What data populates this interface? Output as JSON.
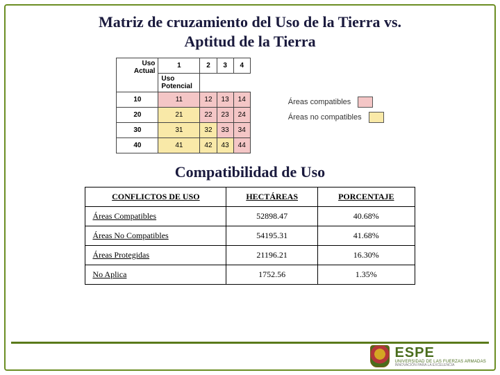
{
  "title_line1": "Matriz de cruzamiento del Uso de la Tierra vs.",
  "title_line2": "Aptitud de la Tierra",
  "matrix": {
    "corner_top": "Uso",
    "corner_mid": "Actual",
    "corner_bot": "Uso",
    "corner_bot2": "Potencial",
    "col_headers": [
      "1",
      "2",
      "3",
      "4"
    ],
    "rows": [
      {
        "hdr": "10",
        "cells": [
          "11",
          "12",
          "13",
          "14"
        ],
        "colors": [
          "#f4c6c6",
          "#f4c6c6",
          "#f4c6c6",
          "#f4c6c6"
        ]
      },
      {
        "hdr": "20",
        "cells": [
          "21",
          "22",
          "23",
          "24"
        ],
        "colors": [
          "#f9e9a8",
          "#f4c6c6",
          "#f4c6c6",
          "#f4c6c6"
        ]
      },
      {
        "hdr": "30",
        "cells": [
          "31",
          "32",
          "33",
          "34"
        ],
        "colors": [
          "#f9e9a8",
          "#f9e9a8",
          "#f4c6c6",
          "#f4c6c6"
        ]
      },
      {
        "hdr": "40",
        "cells": [
          "41",
          "42",
          "43",
          "44"
        ],
        "colors": [
          "#f9e9a8",
          "#f9e9a8",
          "#f9e9a8",
          "#f4c6c6"
        ]
      }
    ]
  },
  "legend": {
    "compat_label": "Áreas compatibles",
    "compat_color": "#f4c6c6",
    "nocompat_label": "Áreas no compatibles",
    "nocompat_color": "#f9e9a8"
  },
  "subtitle": "Compatibilidad de Uso",
  "table": {
    "headers": [
      "CONFLICTOS DE USO",
      "HECTÁREAS",
      "PORCENTAJE"
    ],
    "rows": [
      [
        "Áreas Compatibles",
        "52898.47",
        "40.68%"
      ],
      [
        "Áreas No Compatibles",
        "54195.31",
        "41.68%"
      ],
      [
        "Áreas Protegidas",
        "21196.21",
        "16.30%"
      ],
      [
        "No Aplica",
        "1752.56",
        "1.35%"
      ]
    ]
  },
  "logo": {
    "name": "ESPE",
    "sub": "UNIVERSIDAD DE LAS FUERZAS ARMADAS",
    "motto": "INNOVACIÓN PARA LA EXCELENCIA"
  },
  "colors": {
    "frame": "#6b8e23",
    "title": "#1a1a3d"
  }
}
